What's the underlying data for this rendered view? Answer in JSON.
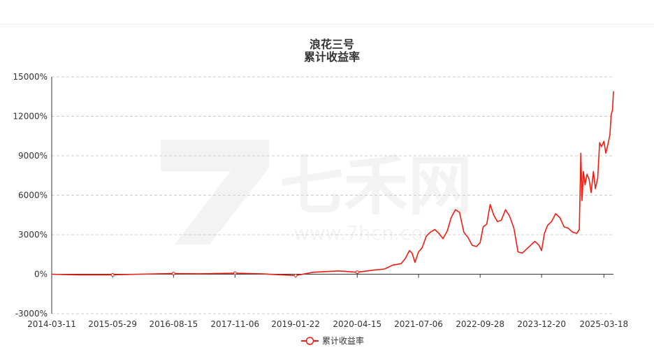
{
  "chart_data": {
    "type": "line",
    "title": "浪花三号",
    "subtitle": "累计收益率",
    "x_ticks": [
      "2014-03-11",
      "2015-05-29",
      "2016-08-15",
      "2017-11-06",
      "2019-01-22",
      "2020-04-15",
      "2021-07-06",
      "2022-09-28",
      "2023-12-20",
      "2025-03-18"
    ],
    "y_ticks": [
      "15000%",
      "12000%",
      "9000%",
      "6000%",
      "3000%",
      "0%",
      "-3000%"
    ],
    "ylim": [
      -3000,
      15000
    ],
    "grid": "horizontal-dashed",
    "legend": {
      "position": "bottom-center",
      "entries": [
        "累计收益率"
      ]
    },
    "colors": {
      "series": "#ee1d10",
      "grid": "#cccccc",
      "axis": "#333333",
      "watermark": "#f3f3f3"
    },
    "watermark": {
      "logo_text": "七禾网",
      "url": "www.7hcn.com"
    },
    "series": [
      {
        "name": "累计收益率",
        "x": [
          "2014-03-11",
          "2014-09-01",
          "2015-05-29",
          "2015-12-01",
          "2016-08-15",
          "2017-03-01",
          "2017-11-06",
          "2018-06-01",
          "2019-01-22",
          "2019-06-01",
          "2019-12-01",
          "2020-04-15",
          "2020-08-01",
          "2020-11-01",
          "2021-01-01",
          "2021-03-01",
          "2021-04-01",
          "2021-05-01",
          "2021-05-20",
          "2021-06-10",
          "2021-07-06",
          "2021-08-01",
          "2021-09-01",
          "2021-10-01",
          "2021-11-01",
          "2021-12-01",
          "2022-01-01",
          "2022-02-01",
          "2022-03-01",
          "2022-04-01",
          "2022-05-01",
          "2022-06-01",
          "2022-07-01",
          "2022-08-01",
          "2022-09-01",
          "2022-09-28",
          "2022-10-20",
          "2022-11-15",
          "2022-12-10",
          "2023-01-05",
          "2023-02-01",
          "2023-03-01",
          "2023-04-01",
          "2023-05-01",
          "2023-06-01",
          "2023-07-01",
          "2023-08-01",
          "2023-09-01",
          "2023-10-01",
          "2023-11-01",
          "2023-12-01",
          "2023-12-20",
          "2024-01-10",
          "2024-02-01",
          "2024-03-01",
          "2024-04-01",
          "2024-05-01",
          "2024-06-01",
          "2024-07-01",
          "2024-08-01",
          "2024-09-01",
          "2024-09-20",
          "2024-10-01",
          "2024-10-10",
          "2024-10-20",
          "2024-11-01",
          "2024-11-15",
          "2024-12-01",
          "2024-12-15",
          "2025-01-01",
          "2025-01-15",
          "2025-02-01",
          "2025-02-15",
          "2025-03-01",
          "2025-03-18",
          "2025-04-01",
          "2025-04-15",
          "2025-05-01",
          "2025-05-10",
          "2025-05-20",
          "2025-05-27"
        ],
        "values": [
          0,
          -50,
          -50,
          0,
          50,
          30,
          80,
          20,
          -100,
          150,
          250,
          150,
          300,
          400,
          700,
          800,
          1200,
          1800,
          1600,
          900,
          1700,
          2000,
          2900,
          3200,
          3400,
          3100,
          2700,
          3300,
          4300,
          4900,
          4700,
          3200,
          2800,
          2200,
          2100,
          2400,
          3600,
          3800,
          5300,
          4500,
          4000,
          4100,
          4900,
          4400,
          3500,
          1700,
          1600,
          1900,
          2200,
          2500,
          2200,
          1800,
          3100,
          3700,
          4000,
          4600,
          4300,
          3600,
          3500,
          3200,
          3100,
          3400,
          9200,
          5600,
          7800,
          6800,
          7600,
          7200,
          6200,
          7800,
          6500,
          7300,
          10000,
          9700,
          10100,
          9200,
          9800,
          10600,
          12100,
          12500,
          13900
        ]
      }
    ]
  }
}
